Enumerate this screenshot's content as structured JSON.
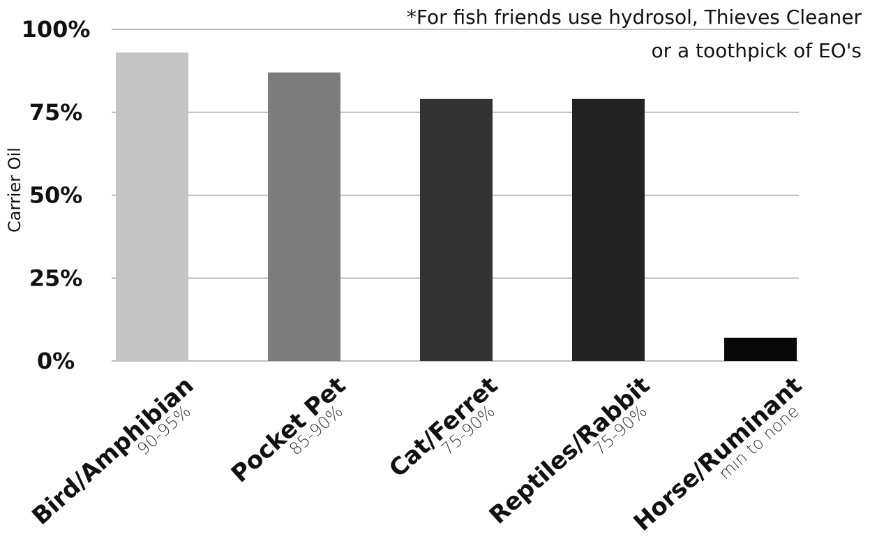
{
  "chart_data": {
    "type": "bar",
    "y_label": "Carrier Oil",
    "annotation": [
      "*For fish friends use hydrosol, Thieves Cleaner",
      "or a toothpick of EO's"
    ],
    "categories": [
      "Bird/Amphibian",
      "Pocket Pet",
      "Cat/Ferret",
      "Reptiles/Rabbit",
      "Horse/Ruminant"
    ],
    "category_sublabels": [
      "90-95%",
      "85-90%",
      "75-90%",
      "75-90%",
      "min to none"
    ],
    "values": [
      93,
      87,
      79,
      79,
      7
    ],
    "colors": [
      "#c4c4c4",
      "#7c7c7c",
      "#333333",
      "#232323",
      "#080808"
    ],
    "ylim": [
      0,
      100
    ],
    "yticks": [
      {
        "value": 0,
        "label": "0%"
      },
      {
        "value": 25,
        "label": "25%"
      },
      {
        "value": 50,
        "label": "50%"
      },
      {
        "value": 75,
        "label": "75%"
      },
      {
        "value": 100,
        "label": "100%"
      }
    ],
    "grid": true
  }
}
